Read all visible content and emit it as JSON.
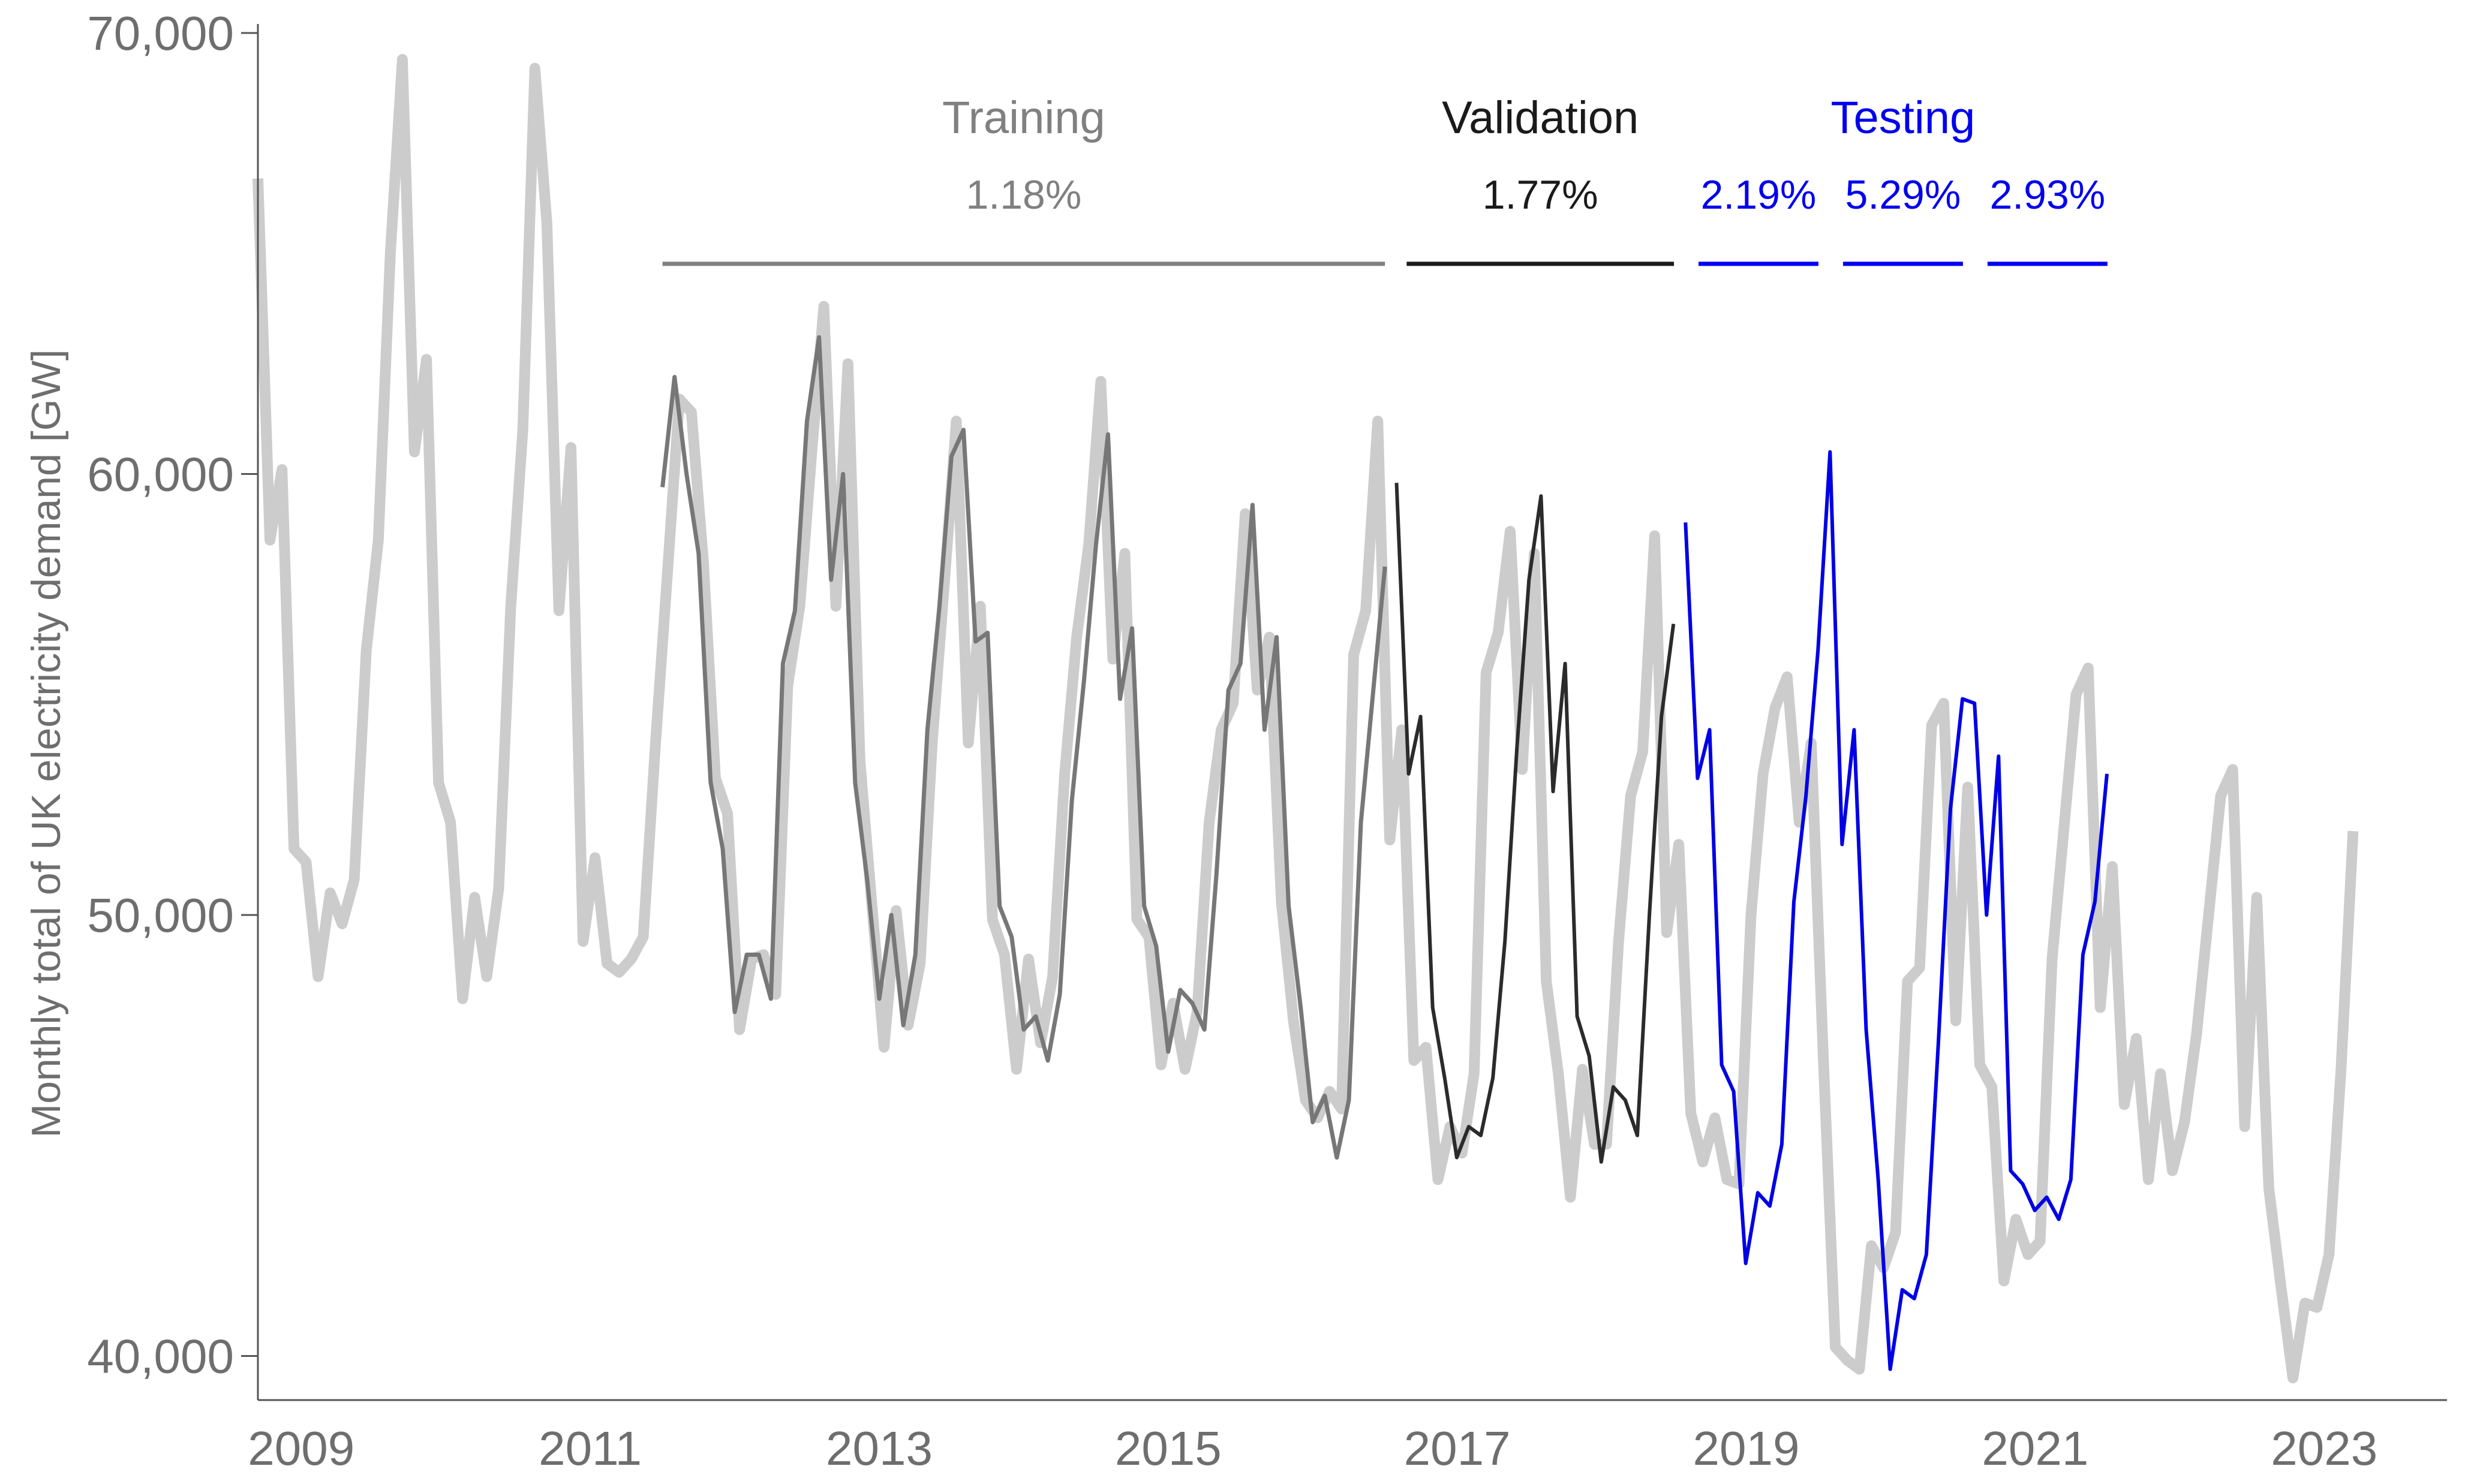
{
  "chart_data": {
    "type": "line",
    "xlabel": "",
    "ylabel": "Monthly total of UK electricity demand [GW]",
    "xlim": [
      2008.7,
      2023.85
    ],
    "ylim": [
      39000,
      70000
    ],
    "yticks": [
      40000,
      50000,
      60000,
      70000
    ],
    "ytick_labels": [
      "40,000",
      "50,000",
      "60,000",
      "70,000"
    ],
    "xticks": [
      2009,
      2011,
      2013,
      2015,
      2017,
      2019,
      2021,
      2023
    ],
    "xtick_labels": [
      "2009",
      "2011",
      "2013",
      "2015",
      "2017",
      "2019",
      "2021",
      "2023"
    ],
    "grid": false,
    "legend": "none",
    "colors": {
      "actual": "#cccccc",
      "training": "#777777",
      "validation": "#2b2b2b",
      "testing": "#0000e6",
      "axis": "#555555"
    },
    "segments": [
      {
        "title": "Training",
        "error": "1.18%",
        "color": "#808080",
        "from": 2011.5,
        "to": 2016.5,
        "show_title": true
      },
      {
        "title": "Validation",
        "error": "1.77%",
        "color": "#1a1a1a",
        "from": 2016.65,
        "to": 2018.5,
        "show_title": true
      },
      {
        "title": "Testing",
        "error": "2.19%",
        "color": "#0000ee",
        "from": 2018.67,
        "to": 2019.5,
        "show_title": true
      },
      {
        "title": "",
        "error": "5.29%",
        "color": "#0000ee",
        "from": 2019.67,
        "to": 2020.5,
        "show_title": false
      },
      {
        "title": "",
        "error": "2.93%",
        "color": "#0000ee",
        "from": 2020.67,
        "to": 2021.5,
        "show_title": false
      }
    ],
    "series": [
      {
        "role": "actual",
        "x_start": 2008.7,
        "x_step": 0.0833333,
        "values": [
          66700,
          58500,
          60100,
          51500,
          51200,
          48600,
          50500,
          49800,
          50800,
          56000,
          58500,
          65000,
          69400,
          60500,
          62600,
          53000,
          52100,
          48100,
          50400,
          48600,
          50600,
          57000,
          61000,
          69200,
          65700,
          56900,
          60600,
          49400,
          51300,
          48900,
          48700,
          49000,
          49500,
          53800,
          57700,
          61700,
          61400,
          58000,
          53100,
          52300,
          47400,
          49000,
          49100,
          48200,
          55200,
          57000,
          60500,
          63800,
          57000,
          62500,
          53500,
          50200,
          47000,
          50100,
          47500,
          48900,
          53900,
          57500,
          61200,
          53900,
          57000,
          49900,
          49100,
          46500,
          49000,
          47100,
          48600,
          53200,
          56300,
          58400,
          62100,
          55800,
          58200,
          49900,
          49500,
          46600,
          48000,
          46500,
          47800,
          52100,
          54200,
          54800,
          59100,
          55100,
          56300,
          50300,
          47600,
          45800,
          45400,
          46000,
          45600,
          55900,
          56900,
          61200,
          51700,
          54200,
          46700,
          47000,
          44000,
          45200,
          44600,
          46400,
          55500,
          56400,
          58700,
          53300,
          58200,
          48500,
          46400,
          43600,
          46500,
          44800,
          44800,
          49400,
          52700,
          53700,
          58600,
          49600,
          51600,
          45500,
          44400,
          45400,
          44000,
          43900,
          50000,
          53200,
          54700,
          55400,
          52100,
          53900,
          46800,
          40200,
          39900,
          39700,
          42500,
          42000,
          42800,
          48500,
          48800,
          54300,
          54800,
          47600,
          52900,
          46600,
          46100,
          41700,
          43100,
          42300,
          42600,
          49000,
          52000,
          55000,
          55600,
          47900,
          51100,
          45700,
          47200,
          44000,
          46400,
          44200,
          45300,
          47300,
          50000,
          52700,
          53300,
          45200,
          50400,
          43800,
          41600,
          39500,
          41200,
          41100,
          42300,
          46500,
          51900
        ]
      },
      {
        "role": "training",
        "x_start": 2011.5,
        "x_step": 0.0833333,
        "values": [
          59700,
          62200,
          60000,
          58200,
          53000,
          51500,
          47800,
          49100,
          49100,
          48100,
          55700,
          56900,
          61200,
          63100,
          57600,
          60000,
          53000,
          50800,
          48100,
          50000,
          47500,
          49100,
          54200,
          57000,
          60400,
          61000,
          56200,
          56400,
          50200,
          49500,
          47400,
          47700,
          46700,
          48200,
          52600,
          55300,
          58400,
          60900,
          54900,
          56500,
          50200,
          49300,
          46900,
          48300,
          48000,
          47400,
          50900,
          55100,
          55700,
          59300,
          54200,
          56300,
          50200,
          47900,
          45300,
          45900,
          44500,
          45800,
          52100,
          55000,
          57900
        ]
      },
      {
        "role": "validation",
        "x_start": 2016.58,
        "x_step": 0.0833333,
        "values": [
          59800,
          53200,
          54500,
          47900,
          46300,
          44500,
          45200,
          45000,
          46300,
          49400,
          53800,
          57600,
          59500,
          52800,
          55700,
          47700,
          46800,
          44400,
          46100,
          45800,
          45000,
          50000,
          54500,
          56600
        ]
      },
      {
        "role": "testing",
        "x_start": 2018.58,
        "x_step": 0.0833333,
        "values": [
          58900,
          53100,
          54200,
          46600,
          46000,
          42100,
          43700,
          43400,
          44800,
          50300,
          52700,
          56000,
          60500,
          51600,
          54200,
          47400,
          44000,
          39700,
          41500,
          41300,
          42300,
          47100,
          52400,
          54900,
          54800,
          50000,
          53600,
          44200,
          43900,
          43300,
          43600,
          43100,
          44000,
          49100,
          50300,
          53200
        ]
      }
    ]
  }
}
